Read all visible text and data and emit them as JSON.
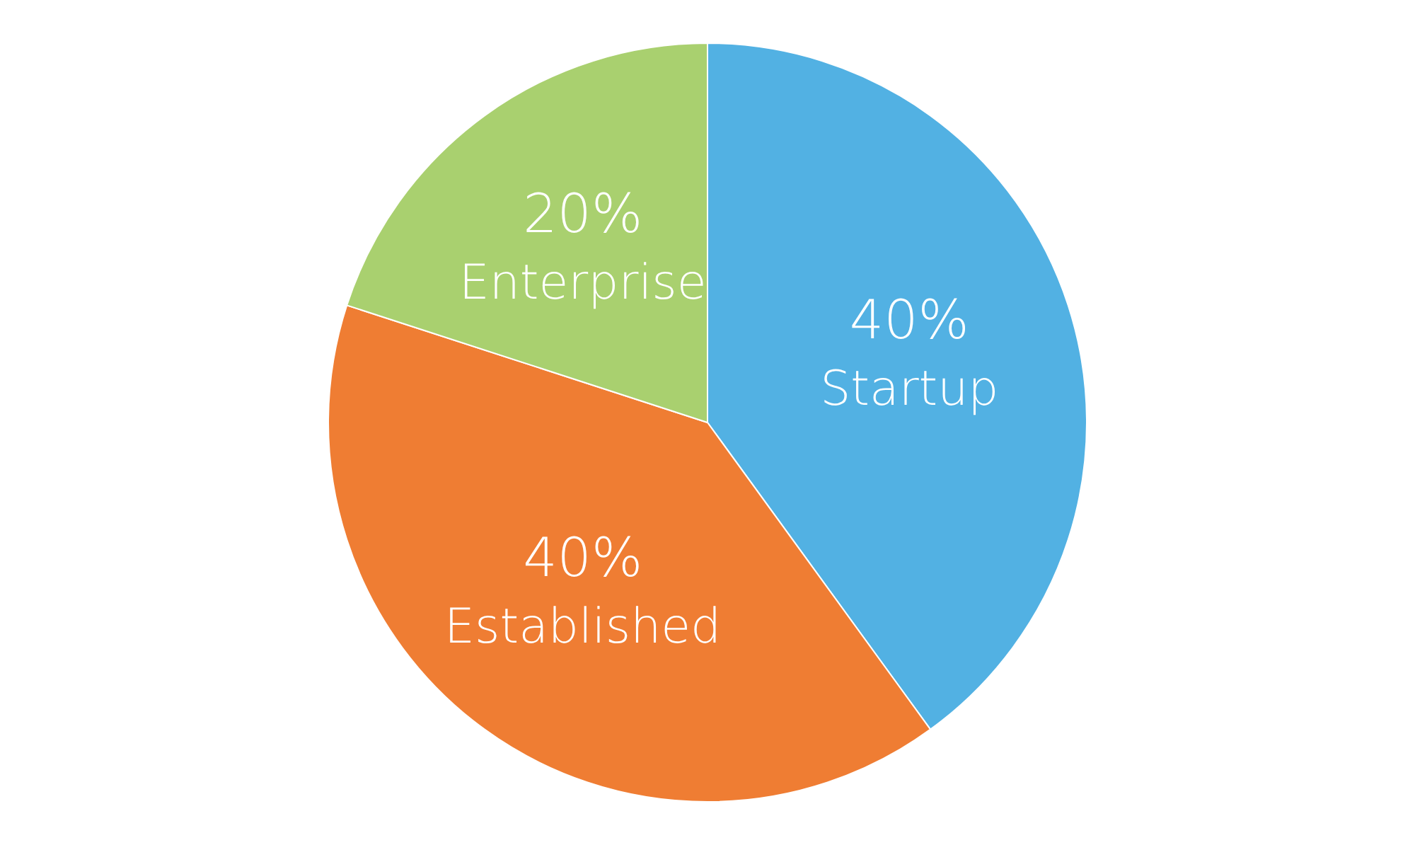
{
  "chart_data": {
    "type": "pie",
    "categories": [
      "Startup",
      "Established",
      "Enterprise"
    ],
    "values": [
      40,
      40,
      20
    ],
    "value_labels": [
      "40%",
      "40%",
      "20%"
    ],
    "colors": [
      "#52b1e3",
      "#ef7d33",
      "#a9d06f"
    ],
    "legend": false
  }
}
